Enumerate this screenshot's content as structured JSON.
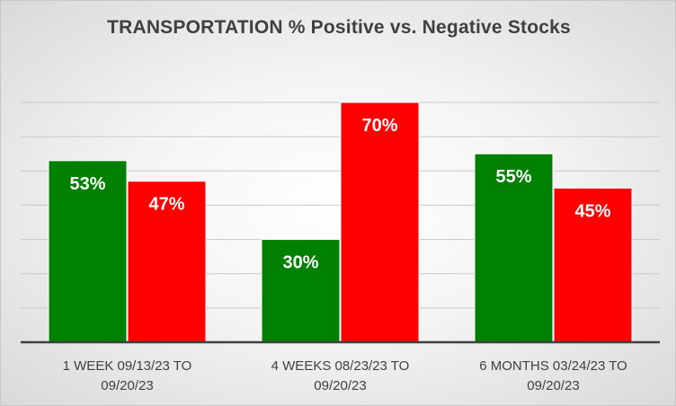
{
  "chart_data": {
    "type": "bar",
    "title": "TRANSPORTATION % Positive vs. Negative Stocks",
    "categories": [
      [
        "1 WEEK 09/13/23 TO",
        "09/20/23"
      ],
      [
        "4 WEEKS 08/23/23 TO",
        "09/20/23"
      ],
      [
        "6 MONTHS 03/24/23 TO",
        "09/20/23"
      ]
    ],
    "series": [
      {
        "values": [
          53,
          30,
          55
        ],
        "labels": [
          "53%",
          "30%",
          "55%"
        ],
        "color": "#008000"
      },
      {
        "values": [
          47,
          70,
          45
        ],
        "labels": [
          "47%",
          "70%",
          "45%"
        ],
        "color": "#ff0000"
      }
    ],
    "ylim": [
      0,
      70
    ],
    "gridlines": true,
    "gridline_count": 7,
    "legend": "none"
  }
}
